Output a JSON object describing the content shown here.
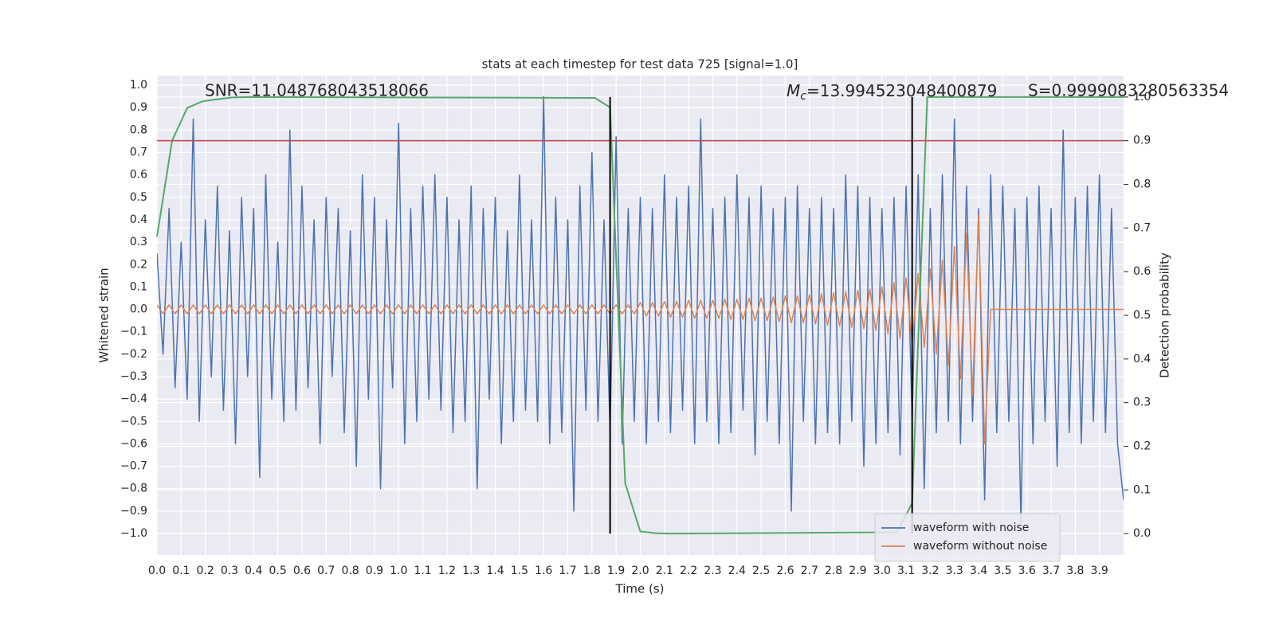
{
  "chart_data": {
    "type": "line",
    "title": "stats at each timestep for test data 725 [signal=1.0]",
    "xlabel": "Time (s)",
    "ylabel": "Whitened strain",
    "y2label": "Detection probability",
    "x": [
      0,
      0.025,
      0.05,
      0.075,
      0.1,
      0.125,
      0.15,
      0.175,
      0.2,
      0.225,
      0.25,
      0.275,
      0.3,
      0.325,
      0.35,
      0.375,
      0.4,
      0.425,
      0.45,
      0.475,
      0.5,
      0.525,
      0.55,
      0.575,
      0.6,
      0.625,
      0.65,
      0.675,
      0.7,
      0.725,
      0.75,
      0.775,
      0.8,
      0.825,
      0.85,
      0.875,
      0.9,
      0.925,
      0.95,
      0.975,
      1,
      1.025,
      1.05,
      1.075,
      1.1,
      1.125,
      1.15,
      1.175,
      1.2,
      1.225,
      1.25,
      1.275,
      1.3,
      1.325,
      1.35,
      1.375,
      1.4,
      1.425,
      1.45,
      1.475,
      1.5,
      1.525,
      1.55,
      1.575,
      1.6,
      1.625,
      1.65,
      1.675,
      1.7,
      1.725,
      1.75,
      1.775,
      1.8,
      1.825,
      1.85,
      1.875,
      1.9,
      1.925,
      1.95,
      1.975,
      2,
      2.025,
      2.05,
      2.075,
      2.1,
      2.125,
      2.15,
      2.175,
      2.2,
      2.225,
      2.25,
      2.275,
      2.3,
      2.325,
      2.35,
      2.375,
      2.4,
      2.425,
      2.45,
      2.475,
      2.5,
      2.525,
      2.55,
      2.575,
      2.6,
      2.625,
      2.65,
      2.675,
      2.7,
      2.725,
      2.75,
      2.775,
      2.8,
      2.825,
      2.85,
      2.875,
      2.9,
      2.925,
      2.95,
      2.975,
      3,
      3.025,
      3.05,
      3.075,
      3.1,
      3.125,
      3.15,
      3.175,
      3.2,
      3.225,
      3.25,
      3.275,
      3.3,
      3.325,
      3.35,
      3.375,
      3.4,
      3.425,
      3.45,
      3.475,
      3.5,
      3.525,
      3.55,
      3.575,
      3.6,
      3.625,
      3.65,
      3.675,
      3.7,
      3.725,
      3.75,
      3.775,
      3.8,
      3.825,
      3.85,
      3.875,
      3.9,
      3.925,
      3.95,
      3.975,
      4
    ],
    "xlim": [
      0,
      4
    ],
    "xticks": [
      {
        "value": 0,
        "label": "0.0"
      },
      0.1,
      0.2,
      0.3,
      0.4,
      0.5,
      0.6,
      0.7,
      0.8,
      0.9,
      {
        "value": 1,
        "label": "1.0"
      },
      1.1,
      1.2,
      1.3,
      1.4,
      1.5,
      1.6,
      1.7,
      1.8,
      1.9,
      {
        "value": 2,
        "label": "2.0"
      },
      2.1,
      2.2,
      2.3,
      2.4,
      2.5,
      2.6,
      2.7,
      2.8,
      2.9,
      {
        "value": 3,
        "label": "3.0"
      },
      3.1,
      3.2,
      3.3,
      3.4,
      3.5,
      3.6,
      3.7,
      3.8,
      3.9
    ],
    "ylim": [
      -1.096,
      1.043
    ],
    "yticks": [
      {
        "value": -1,
        "label": "−1.0"
      },
      {
        "value": -0.9,
        "label": "−0.9"
      },
      {
        "value": -0.8,
        "label": "−0.8"
      },
      {
        "value": -0.7,
        "label": "−0.7"
      },
      {
        "value": -0.6,
        "label": "−0.6"
      },
      {
        "value": -0.5,
        "label": "−0.5"
      },
      {
        "value": -0.4,
        "label": "−0.4"
      },
      {
        "value": -0.3,
        "label": "−0.3"
      },
      {
        "value": -0.2,
        "label": "−0.2"
      },
      {
        "value": -0.1,
        "label": "−0.1"
      },
      {
        "value": 0,
        "label": "0.0"
      },
      0.1,
      0.2,
      0.3,
      0.4,
      0.5,
      0.6,
      0.7,
      0.8,
      0.9,
      {
        "value": 1,
        "label": "1.0"
      }
    ],
    "y2lim": [
      -0.049,
      1.049
    ],
    "y2ticks": [
      {
        "value": 0,
        "label": "0.0"
      },
      0.1,
      0.2,
      0.3,
      0.4,
      0.5,
      0.6,
      0.7,
      0.8,
      0.9,
      {
        "value": 1,
        "label": "1.0"
      }
    ],
    "grid": true,
    "legend": "lower right",
    "series": [
      {
        "name": "waveform with noise",
        "color": "#4c72b0",
        "values": [
          0.25,
          -0.2,
          0.45,
          -0.35,
          0.3,
          -0.4,
          0.85,
          -0.5,
          0.4,
          -0.3,
          0.55,
          -0.45,
          0.35,
          -0.6,
          0.5,
          -0.3,
          0.45,
          -0.75,
          0.6,
          -0.4,
          0.3,
          -0.5,
          0.8,
          -0.45,
          0.55,
          -0.35,
          0.4,
          -0.6,
          0.5,
          -0.3,
          0.45,
          -0.55,
          0.35,
          -0.7,
          0.6,
          -0.4,
          0.5,
          -0.8,
          0.4,
          -0.35,
          0.83,
          -0.6,
          0.45,
          -0.5,
          0.55,
          -0.4,
          0.6,
          -0.45,
          0.5,
          -0.55,
          0.4,
          -0.5,
          0.55,
          -0.8,
          0.45,
          -0.4,
          0.5,
          -0.6,
          0.35,
          -0.5,
          0.6,
          -0.45,
          0.4,
          -0.5,
          0.95,
          -0.6,
          0.5,
          -0.55,
          0.4,
          -0.9,
          0.55,
          -0.45,
          0.7,
          -0.5,
          0.4,
          -0.55,
          0.77,
          -0.6,
          0.45,
          -0.5,
          0.5,
          -0.6,
          0.45,
          -0.5,
          0.6,
          -0.55,
          0.5,
          -0.45,
          0.55,
          -0.6,
          0.85,
          -0.5,
          0.45,
          -0.6,
          0.5,
          -0.55,
          0.6,
          -0.45,
          0.5,
          -0.65,
          0.55,
          -0.5,
          0.45,
          -0.6,
          0.5,
          -0.9,
          0.55,
          -0.5,
          0.45,
          -0.6,
          0.5,
          -0.55,
          0.45,
          -0.6,
          0.6,
          -0.5,
          0.55,
          -0.7,
          0.5,
          -0.6,
          0.45,
          -0.55,
          0.5,
          -0.65,
          0.55,
          -0.5,
          0.6,
          -0.8,
          0.45,
          -0.55,
          0.6,
          -0.5,
          0.85,
          -0.6,
          0.55,
          -0.5,
          0.45,
          -0.85,
          0.6,
          -0.55,
          0.55,
          -0.5,
          0.45,
          -0.95,
          0.5,
          -0.6,
          0.55,
          -0.5,
          0.45,
          -0.7,
          0.8,
          -0.55,
          0.5,
          -0.6,
          0.55,
          -0.5,
          0.6,
          -0.55,
          0.45,
          -0.6,
          -0.85
        ]
      },
      {
        "name": "waveform without noise",
        "color": "#dd8452",
        "values": [
          0.02,
          -0.02,
          0.02,
          -0.02,
          0.02,
          -0.02,
          0.02,
          -0.02,
          0.02,
          -0.02,
          0.02,
          -0.02,
          0.02,
          -0.02,
          0.02,
          -0.02,
          0.02,
          -0.02,
          0.02,
          -0.02,
          0.02,
          -0.02,
          0.02,
          -0.02,
          0.02,
          -0.02,
          0.02,
          -0.02,
          0.02,
          -0.02,
          0.02,
          -0.02,
          0.02,
          -0.02,
          0.02,
          -0.02,
          0.02,
          -0.02,
          0.02,
          -0.02,
          0.02,
          -0.02,
          0.02,
          -0.02,
          0.02,
          -0.02,
          0.02,
          -0.02,
          0.02,
          -0.02,
          0.02,
          -0.02,
          0.02,
          -0.02,
          0.02,
          -0.02,
          0.02,
          -0.02,
          0.02,
          -0.02,
          0.02,
          -0.02,
          0.02,
          -0.02,
          0.02,
          -0.02,
          0.02,
          -0.02,
          0.02,
          -0.02,
          0.02,
          -0.02,
          0.02,
          -0.02,
          0.02,
          -0.02,
          0.02,
          -0.02,
          0.02,
          -0.02,
          0.03,
          -0.03,
          0.03,
          -0.03,
          0.035,
          -0.035,
          0.035,
          -0.035,
          0.04,
          -0.04,
          0.04,
          -0.04,
          0.04,
          -0.04,
          0.045,
          -0.045,
          0.045,
          -0.045,
          0.05,
          -0.05,
          0.05,
          -0.05,
          0.055,
          -0.055,
          0.06,
          -0.06,
          0.06,
          -0.06,
          0.065,
          -0.065,
          0.07,
          -0.07,
          0.075,
          -0.075,
          0.08,
          -0.08,
          0.085,
          -0.085,
          0.09,
          -0.095,
          0.1,
          -0.11,
          0.12,
          -0.13,
          0.14,
          -0.15,
          0.16,
          -0.17,
          0.18,
          -0.2,
          0.22,
          -0.25,
          0.28,
          -0.31,
          0.34,
          -0.38,
          0.42,
          -0.6,
          0,
          0,
          0,
          0,
          0,
          0,
          0,
          0,
          0,
          0,
          0,
          0,
          0,
          0,
          0,
          0,
          0,
          0,
          0,
          0,
          0,
          0,
          0
        ]
      },
      {
        "color": "#55a868",
        "axis": "y2",
        "x": [
          0,
          0.0625,
          0.125,
          0.1875,
          0.25,
          0.3125,
          0.375,
          1.8125,
          1.875,
          1.9375,
          2,
          2.0625,
          2.125,
          3.0625,
          3.125,
          3.1875,
          4
        ],
        "values": [
          0.68,
          0.9,
          0.975,
          0.99,
          0.995,
          0.999,
          1,
          0.998,
          0.976,
          0.115,
          0.005,
          0.001,
          0,
          0.003,
          0.07,
          1,
          1
        ]
      }
    ],
    "threshold": {
      "value": 0.9,
      "axis": "y2",
      "color": "#c44e52"
    },
    "vlines": {
      "x": [
        1.875,
        3.125
      ],
      "color": "#000000"
    },
    "annotations": {
      "snr": "SNR=11.048768043518066",
      "mc_symbol": "M",
      "mc_subscript": "c",
      "mc_value": "=13.994523048400879",
      "s": "S=0.9999083280563354"
    }
  }
}
